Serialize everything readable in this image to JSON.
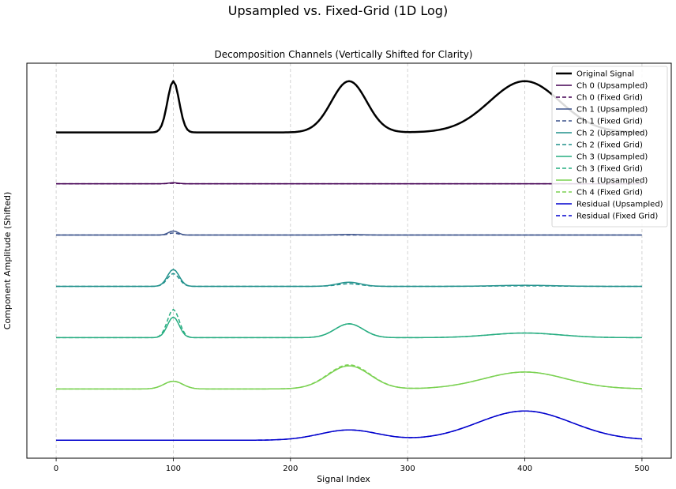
{
  "figure": {
    "suptitle": "Upsampled vs. Fixed-Grid (1D Log)"
  },
  "chart_data": {
    "type": "line",
    "title": "Decomposition Channels (Vertically Shifted for Clarity)",
    "xlabel": "Signal Index",
    "ylabel": "Component Amplitude (Shifted)",
    "xlim": [
      -25,
      525
    ],
    "ylim": [
      -6.35,
      1.35
    ],
    "xticks": [
      0,
      100,
      200,
      300,
      400,
      500
    ],
    "yticks_shown": false,
    "grid": "x-axis, dashed",
    "legend_position": "top-right",
    "x_range": [
      0,
      500
    ],
    "note_x_sampling": "curves sampled every 2 indices over the x range",
    "series": [
      {
        "name": "Original Signal",
        "color": "#000000",
        "dash": false,
        "width": 2.5,
        "offset": 0,
        "bumps": [
          {
            "center": 100,
            "sigma": 5,
            "amp": 1.0
          },
          {
            "center": 250,
            "sigma": 15,
            "amp": 1.0
          },
          {
            "center": 400,
            "sigma": 30,
            "amp": 1.0
          }
        ]
      },
      {
        "name": "Ch 0 (Upsampled)",
        "color": "#440154",
        "dash": false,
        "width": 1.5,
        "offset": -1,
        "bumps": [
          {
            "center": 100,
            "sigma": 4,
            "amp": 0.02
          }
        ]
      },
      {
        "name": "Ch 0 (Fixed Grid)",
        "color": "#440154",
        "dash": true,
        "width": 1.5,
        "offset": -1,
        "bumps": [
          {
            "center": 100,
            "sigma": 4,
            "amp": 0.01
          }
        ]
      },
      {
        "name": "Ch 1 (Upsampled)",
        "color": "#3b528b",
        "dash": false,
        "width": 1.5,
        "offset": -2,
        "bumps": [
          {
            "center": 100,
            "sigma": 4,
            "amp": 0.08
          },
          {
            "center": 250,
            "sigma": 12,
            "amp": 0.01
          }
        ]
      },
      {
        "name": "Ch 1 (Fixed Grid)",
        "color": "#3b528b",
        "dash": true,
        "width": 1.5,
        "offset": -2,
        "bumps": [
          {
            "center": 100,
            "sigma": 4,
            "amp": 0.04
          }
        ]
      },
      {
        "name": "Ch 2 (Upsampled)",
        "color": "#21918c",
        "dash": false,
        "width": 1.5,
        "offset": -3,
        "bumps": [
          {
            "center": 100,
            "sigma": 5,
            "amp": 0.33
          },
          {
            "center": 250,
            "sigma": 10,
            "amp": 0.08
          },
          {
            "center": 400,
            "sigma": 25,
            "amp": 0.02
          }
        ]
      },
      {
        "name": "Ch 2 (Fixed Grid)",
        "color": "#21918c",
        "dash": true,
        "width": 1.5,
        "offset": -3,
        "bumps": [
          {
            "center": 100,
            "sigma": 5,
            "amp": 0.25
          },
          {
            "center": 250,
            "sigma": 10,
            "amp": 0.05
          },
          {
            "center": 400,
            "sigma": 25,
            "amp": 0.01
          }
        ]
      },
      {
        "name": "Ch 3 (Upsampled)",
        "color": "#27ad81",
        "dash": false,
        "width": 1.5,
        "offset": -4,
        "bumps": [
          {
            "center": 100,
            "sigma": 5,
            "amp": 0.4
          },
          {
            "center": 250,
            "sigma": 12,
            "amp": 0.27
          },
          {
            "center": 400,
            "sigma": 30,
            "amp": 0.09
          }
        ]
      },
      {
        "name": "Ch 3 (Fixed Grid)",
        "color": "#27ad81",
        "dash": true,
        "width": 1.5,
        "offset": -4,
        "bumps": [
          {
            "center": 100,
            "sigma": 5,
            "amp": 0.55
          },
          {
            "center": 250,
            "sigma": 12,
            "amp": 0.27
          },
          {
            "center": 400,
            "sigma": 30,
            "amp": 0.09
          }
        ]
      },
      {
        "name": "Ch 4 (Upsampled)",
        "color": "#7ad151",
        "dash": false,
        "width": 1.5,
        "offset": -5,
        "bumps": [
          {
            "center": 100,
            "sigma": 8,
            "amp": 0.15
          },
          {
            "center": 250,
            "sigma": 18,
            "amp": 0.45
          },
          {
            "center": 400,
            "sigma": 35,
            "amp": 0.33
          }
        ]
      },
      {
        "name": "Ch 4 (Fixed Grid)",
        "color": "#7ad151",
        "dash": true,
        "width": 1.5,
        "offset": -5,
        "bumps": [
          {
            "center": 100,
            "sigma": 8,
            "amp": 0.15
          },
          {
            "center": 250,
            "sigma": 18,
            "amp": 0.47
          },
          {
            "center": 400,
            "sigma": 35,
            "amp": 0.33
          }
        ]
      },
      {
        "name": "Residual (Upsampled)",
        "color": "#0000cd",
        "dash": false,
        "width": 1.5,
        "offset": -6,
        "bumps": [
          {
            "center": 250,
            "sigma": 25,
            "amp": 0.2
          },
          {
            "center": 400,
            "sigma": 40,
            "amp": 0.57
          }
        ]
      },
      {
        "name": "Residual (Fixed Grid)",
        "color": "#0000cd",
        "dash": true,
        "width": 1.5,
        "offset": -6,
        "bumps": [
          {
            "center": 250,
            "sigma": 25,
            "amp": 0.2
          },
          {
            "center": 400,
            "sigma": 40,
            "amp": 0.57
          }
        ]
      }
    ]
  }
}
